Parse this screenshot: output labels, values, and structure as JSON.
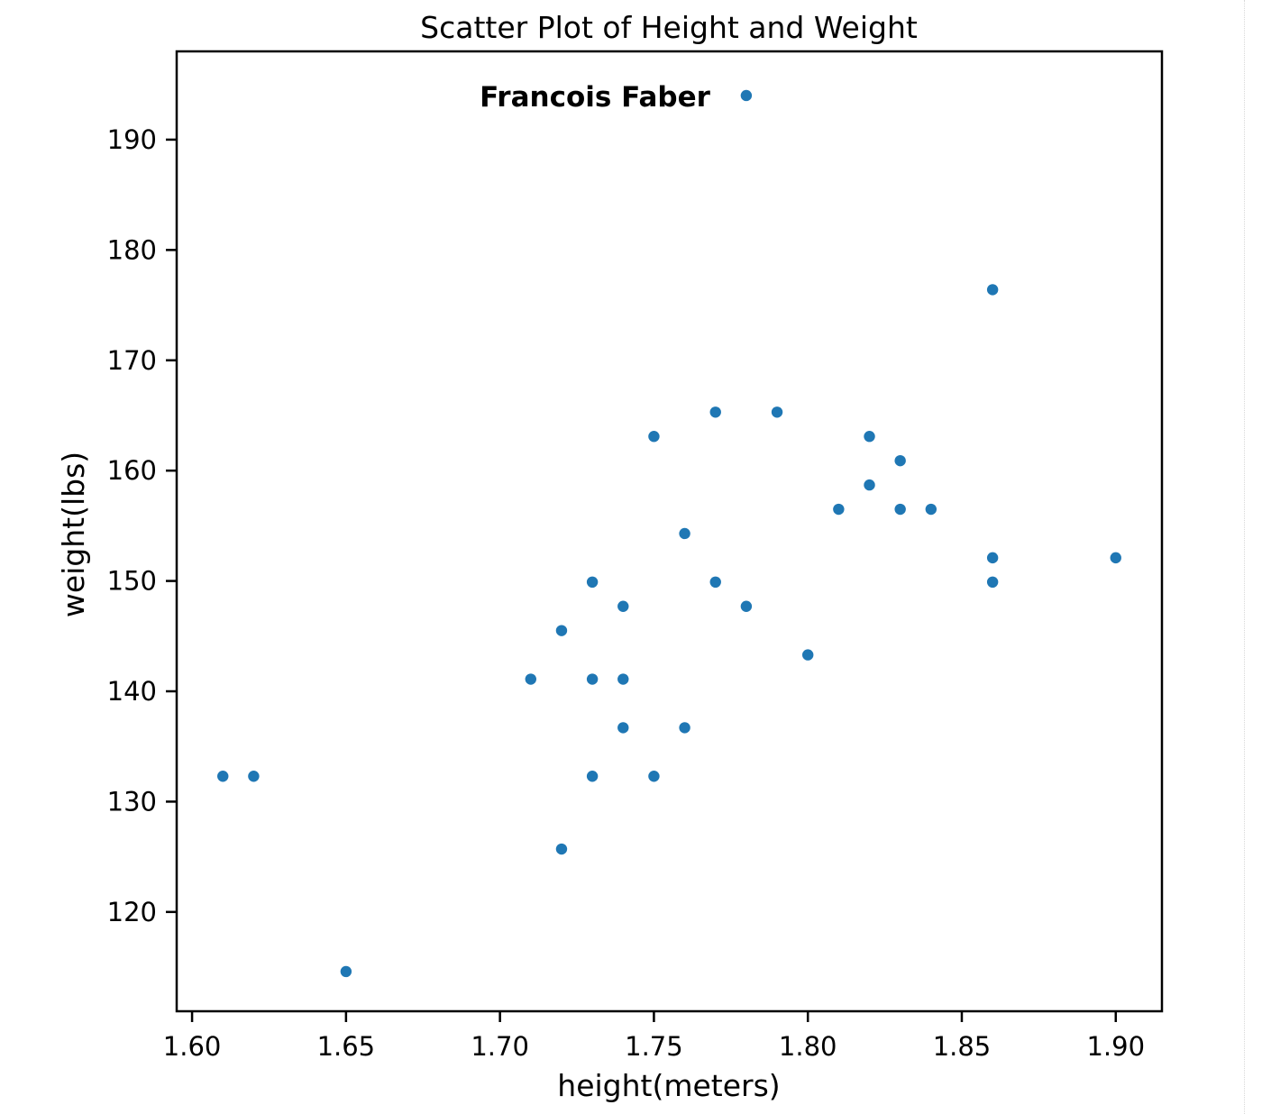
{
  "chart_data": {
    "type": "scatter",
    "title": "Scatter Plot of Height and Weight",
    "xlabel": "height(meters)",
    "ylabel": "weight(lbs)",
    "xlim": [
      1.595,
      1.915
    ],
    "ylim": [
      111,
      198
    ],
    "xticks": [
      1.6,
      1.65,
      1.7,
      1.75,
      1.8,
      1.85,
      1.9
    ],
    "xtick_labels": [
      "1.60",
      "1.65",
      "1.70",
      "1.75",
      "1.80",
      "1.85",
      "1.90"
    ],
    "yticks": [
      120,
      130,
      140,
      150,
      160,
      170,
      180,
      190
    ],
    "ytick_labels": [
      "120",
      "130",
      "140",
      "150",
      "160",
      "170",
      "180",
      "190"
    ],
    "grid": false,
    "marker_color": "#1f77b4",
    "points": [
      {
        "x": 1.61,
        "y": 132.3
      },
      {
        "x": 1.62,
        "y": 132.3
      },
      {
        "x": 1.65,
        "y": 114.6
      },
      {
        "x": 1.71,
        "y": 141.1
      },
      {
        "x": 1.72,
        "y": 145.5
      },
      {
        "x": 1.72,
        "y": 125.7
      },
      {
        "x": 1.73,
        "y": 149.9
      },
      {
        "x": 1.73,
        "y": 141.1
      },
      {
        "x": 1.73,
        "y": 132.3
      },
      {
        "x": 1.74,
        "y": 147.7
      },
      {
        "x": 1.74,
        "y": 141.1
      },
      {
        "x": 1.74,
        "y": 136.7
      },
      {
        "x": 1.75,
        "y": 163.1
      },
      {
        "x": 1.75,
        "y": 132.3
      },
      {
        "x": 1.76,
        "y": 154.3
      },
      {
        "x": 1.76,
        "y": 136.7
      },
      {
        "x": 1.77,
        "y": 165.3
      },
      {
        "x": 1.77,
        "y": 149.9
      },
      {
        "x": 1.78,
        "y": 147.7
      },
      {
        "x": 1.78,
        "y": 194.0
      },
      {
        "x": 1.79,
        "y": 165.3
      },
      {
        "x": 1.8,
        "y": 143.3
      },
      {
        "x": 1.81,
        "y": 156.5
      },
      {
        "x": 1.82,
        "y": 163.1
      },
      {
        "x": 1.82,
        "y": 158.7
      },
      {
        "x": 1.83,
        "y": 160.9
      },
      {
        "x": 1.83,
        "y": 156.5
      },
      {
        "x": 1.84,
        "y": 156.5
      },
      {
        "x": 1.86,
        "y": 176.4
      },
      {
        "x": 1.86,
        "y": 152.1
      },
      {
        "x": 1.86,
        "y": 149.9
      },
      {
        "x": 1.9,
        "y": 152.1
      }
    ],
    "annotations": [
      {
        "text": "Francois Faber",
        "x": 1.78,
        "y": 194.0
      }
    ]
  }
}
